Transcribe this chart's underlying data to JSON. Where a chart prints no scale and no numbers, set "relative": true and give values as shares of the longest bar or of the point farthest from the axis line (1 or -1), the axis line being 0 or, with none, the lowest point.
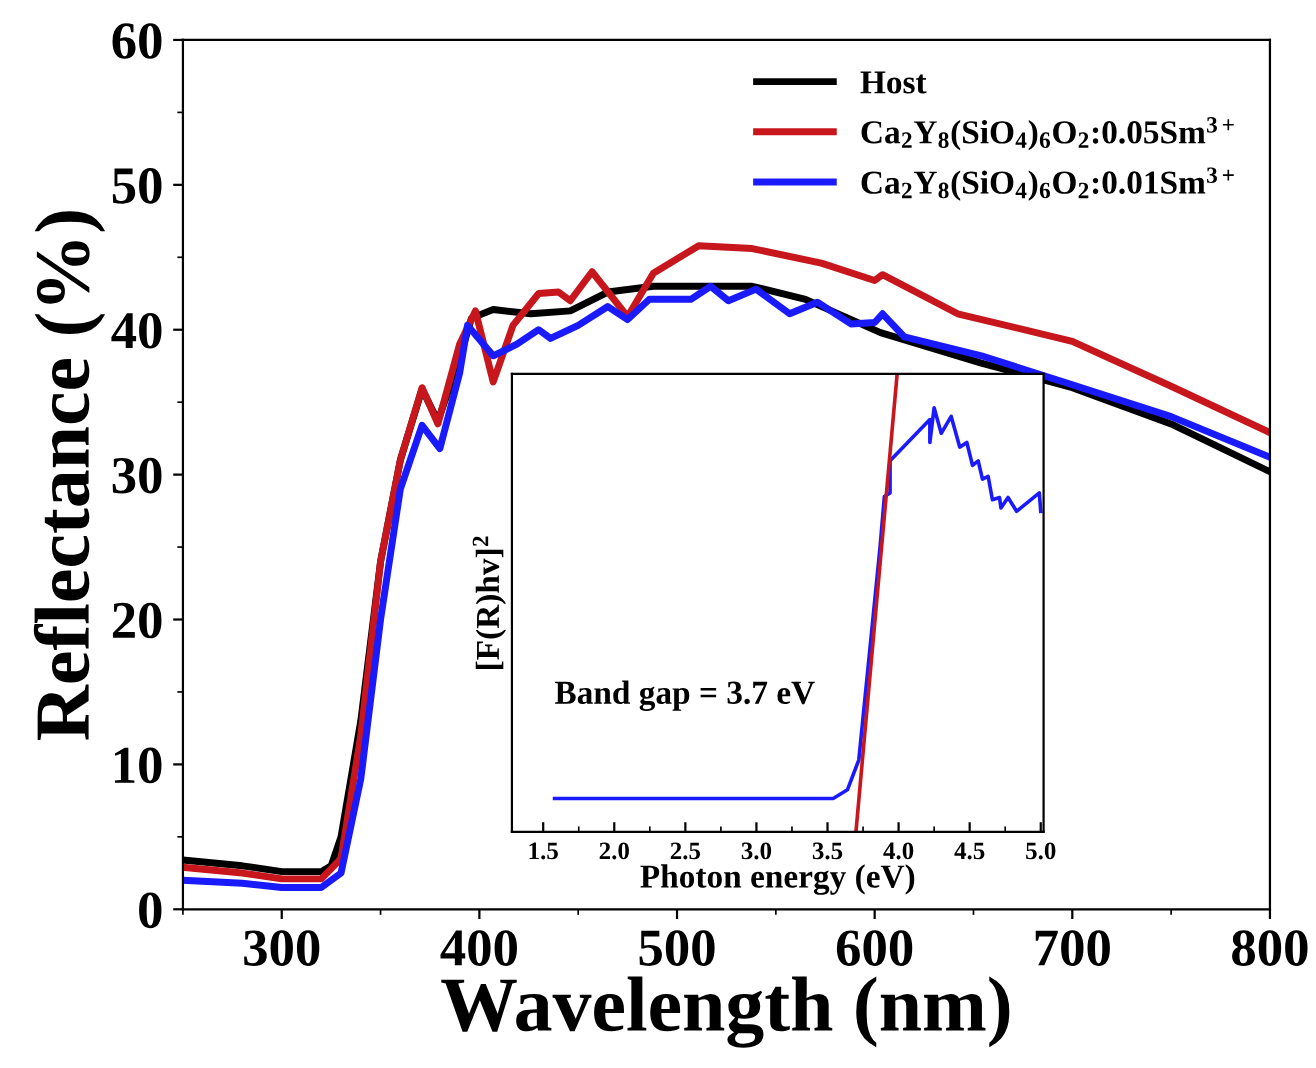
{
  "chart_data": [
    {
      "type": "line",
      "xlabel": "Wavelength (nm)",
      "ylabel": "Reflectance (%)",
      "xlim": [
        250,
        800
      ],
      "xticks": [
        300,
        400,
        500,
        600,
        700,
        800
      ],
      "ylim": [
        0,
        60
      ],
      "yticks": [
        0,
        10,
        20,
        30,
        40,
        50,
        60
      ],
      "legend": "top right",
      "grid": false,
      "series": [
        {
          "name": "Host",
          "color": "#000000",
          "x": [
            250,
            280,
            300,
            320,
            325,
            330,
            340,
            350,
            360,
            371,
            379,
            390,
            396,
            407,
            426,
            446,
            465,
            488,
            538,
            565,
            603,
            654,
            700,
            750,
            800
          ],
          "values": [
            3.4,
            3.0,
            2.6,
            2.6,
            3.0,
            5,
            13,
            24,
            31,
            35.9,
            33.7,
            38,
            40.8,
            41.4,
            41.1,
            41.3,
            42.6,
            43.0,
            43.0,
            42.1,
            39.8,
            37.7,
            36.0,
            33.5,
            30.2
          ]
        },
        {
          "name": "Ca$_{2}$Y$_{8}$(SiO$_{4}$)$_{6}$O$_{2}$:0.05Sm$^{3+}$",
          "color": "#c8161d",
          "x": [
            250,
            280,
            300,
            320,
            330,
            340,
            350,
            360,
            371,
            379,
            390,
            398,
            407,
            417,
            430,
            440,
            446,
            457,
            475,
            488,
            511,
            538,
            573,
            600,
            604,
            642,
            700,
            750,
            800
          ],
          "values": [
            2.9,
            2.5,
            2.1,
            2.1,
            3.5,
            12,
            24,
            31,
            36.0,
            33.5,
            39,
            41.3,
            36.4,
            40.3,
            42.5,
            42.6,
            42.0,
            44.0,
            40.9,
            43.9,
            45.8,
            45.6,
            44.6,
            43.4,
            43.8,
            41.1,
            39.2,
            36.1,
            32.9
          ]
        },
        {
          "name": "Ca$_{2}$Y$_{8}$(SiO$_{4}$)$_{6}$O$_{2}$:0.01Sm$^{3+}$",
          "color": "#1a1aff",
          "x": [
            250,
            280,
            300,
            320,
            330,
            340,
            350,
            360,
            371,
            380,
            390,
            394,
            407,
            419,
            430,
            436,
            450,
            465,
            475,
            486,
            507,
            517,
            526,
            540,
            557,
            571,
            588,
            600,
            604,
            615,
            654,
            700,
            750,
            800
          ],
          "values": [
            2.0,
            1.8,
            1.5,
            1.5,
            2.5,
            9,
            20,
            29,
            33.4,
            31.8,
            37,
            40.3,
            38.2,
            39.0,
            40.0,
            39.4,
            40.3,
            41.6,
            40.7,
            42.1,
            42.1,
            43.0,
            42.0,
            42.8,
            41.1,
            41.9,
            40.4,
            40.5,
            41.1,
            39.5,
            38.2,
            36.2,
            34.0,
            31.2
          ]
        }
      ]
    },
    {
      "type": "line",
      "xlabel": "Photon energy (eV)",
      "ylabel": "[F(R)hv]$^{2}$",
      "relative": true,
      "tick_labels": "x",
      "xlim": [
        1.28,
        5.02
      ],
      "xticks": [
        1.5,
        {
          "value": 2,
          "label": "2.0"
        },
        2.5,
        {
          "value": 3,
          "label": "3.0"
        },
        3.5,
        {
          "value": 4,
          "label": "4.0"
        },
        4.5,
        {
          "value": 5,
          "label": "5.0"
        }
      ],
      "legend": false,
      "grid": false,
      "annotations": [
        "Band gap = 3.7 eV"
      ],
      "series": [
        {
          "color": "#1a1aff",
          "x": [
            1.58,
            3.54,
            3.64,
            3.72,
            3.8,
            3.87,
            3.9,
            3.94,
            3.94,
            4.22,
            4.22,
            4.25,
            4.3,
            4.37,
            4.43,
            4.48,
            4.52,
            4.56,
            4.59,
            4.63,
            4.66,
            4.71,
            4.72,
            4.77,
            4.83,
            4.99,
            5.0
          ],
          "values": [
            0.073,
            0.073,
            0.092,
            0.157,
            0.405,
            0.623,
            0.732,
            0.74,
            0.81,
            0.9,
            0.85,
            0.926,
            0.87,
            0.907,
            0.84,
            0.85,
            0.8,
            0.81,
            0.77,
            0.776,
            0.725,
            0.73,
            0.707,
            0.73,
            0.7,
            0.74,
            0.7
          ]
        },
        {
          "color": "#c8161d",
          "x": [
            3.7,
            3.99
          ],
          "values": [
            0,
            1
          ]
        }
      ]
    }
  ]
}
